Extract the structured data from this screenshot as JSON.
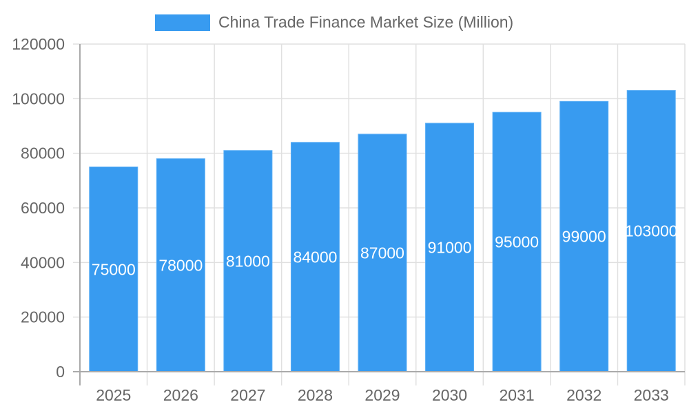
{
  "chart_data": {
    "type": "bar",
    "title": "",
    "legend": [
      "China Trade Finance Market Size (Million)"
    ],
    "legend_position": "top",
    "categories": [
      "2025",
      "2026",
      "2027",
      "2028",
      "2029",
      "2030",
      "2031",
      "2032",
      "2033"
    ],
    "series": [
      {
        "name": "China Trade Finance Market Size (Million)",
        "values": [
          75000,
          78000,
          81000,
          84000,
          87000,
          91000,
          95000,
          99000,
          103000
        ],
        "color": "#389bf0"
      }
    ],
    "xlabel": "",
    "ylabel": "",
    "ylim": [
      0,
      120000
    ],
    "yticks": [
      0,
      20000,
      40000,
      60000,
      80000,
      100000,
      120000
    ],
    "grid": true,
    "data_labels": true
  },
  "colors": {
    "bar": "#389bf0",
    "grid": "#e0e0e0",
    "axis": "#aaaaaa",
    "tick_text": "#666666",
    "data_label": "#ffffff"
  }
}
